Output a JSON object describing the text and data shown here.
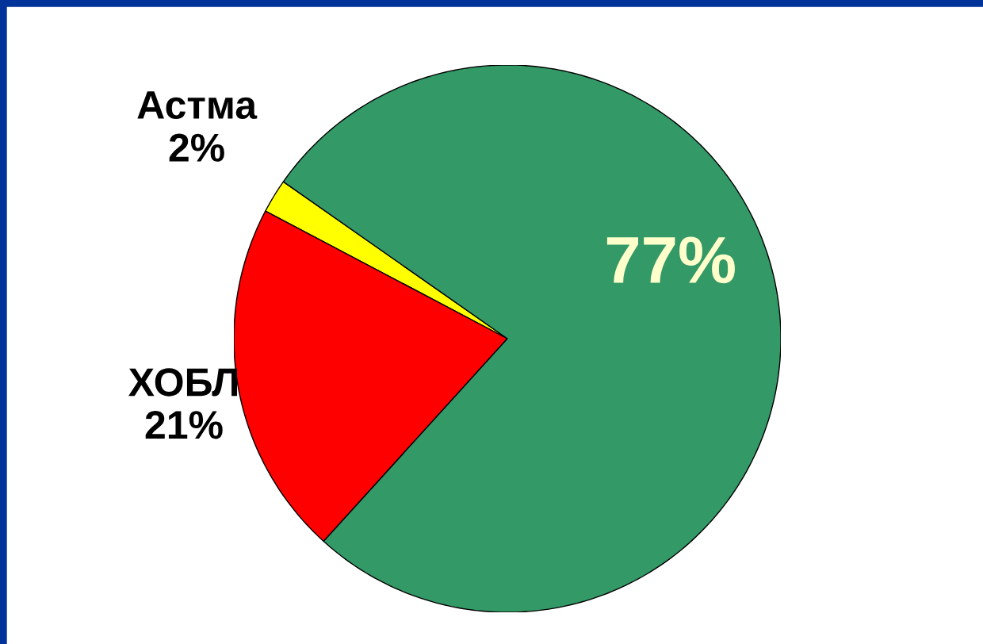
{
  "chart_data": {
    "type": "pie",
    "categories": [
      "Астма",
      "ХОБЛ",
      null
    ],
    "values": [
      2,
      21,
      77
    ],
    "colors": [
      "#ffff00",
      "#ff0000",
      "#339966"
    ],
    "value_labels": [
      "2%",
      "21%",
      "77%"
    ]
  }
}
